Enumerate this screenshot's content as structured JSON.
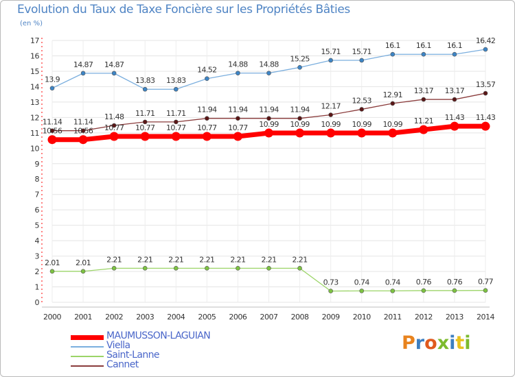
{
  "title": "Evolution du Taux de Taxe Foncière sur les Propriétés Bâties",
  "unit_label": "(en %)",
  "logo_text": "Proxiti",
  "logo_colors": [
    "#e8831e",
    "#3d7fc1",
    "#e05a1e",
    "#7dbb2e",
    "#3d7fc1",
    "#e8c21e",
    "#7dbb2e"
  ],
  "chart_data": {
    "type": "line",
    "title": "Evolution du Taux de Taxe Foncière sur les Propriétés Bâties",
    "ylabel": "(en %)",
    "xlabel": "",
    "x": [
      "2000",
      "2001",
      "2002",
      "2003",
      "2004",
      "2005",
      "2006",
      "2007",
      "2008",
      "2009",
      "2010",
      "2011",
      "2012",
      "2013",
      "2014"
    ],
    "ylim": [
      0,
      17
    ],
    "yticks": [
      "0",
      "1",
      "2",
      "3",
      "4",
      "5",
      "6",
      "7",
      "8",
      "9",
      "10",
      "11",
      "12",
      "13",
      "14",
      "15",
      "16",
      "17"
    ],
    "grid": true,
    "legend_position": "bottom-left",
    "series": [
      {
        "name": "MAUMUSSON-LAGUIAN",
        "color": "#ff0000",
        "values": [
          10.56,
          10.56,
          10.77,
          10.77,
          10.77,
          10.77,
          10.77,
          10.99,
          10.99,
          10.99,
          10.99,
          10.99,
          11.21,
          11.43,
          11.43
        ],
        "labels": [
          "10.56",
          "10.56",
          "10.77",
          "10.77",
          "10.77",
          "10.77",
          "10.77",
          "10.99",
          "10.99",
          "10.99",
          "10.99",
          "10.99",
          "11.21",
          "11.43",
          "11.43"
        ]
      },
      {
        "name": "Viella",
        "color": "#5b9bd5",
        "values": [
          13.9,
          14.87,
          14.87,
          13.83,
          13.83,
          14.52,
          14.88,
          14.88,
          15.25,
          15.71,
          15.71,
          16.1,
          16.1,
          16.1,
          16.42
        ],
        "labels": [
          "13.9",
          "14.87",
          "14.87",
          "13.83",
          "13.83",
          "14.52",
          "14.88",
          "14.88",
          "15.25",
          "15.71",
          "15.71",
          "16.1",
          "16.1",
          "16.1",
          "16.42"
        ]
      },
      {
        "name": "Saint-Lanne",
        "color": "#8fd14f",
        "values": [
          2.01,
          2.01,
          2.21,
          2.21,
          2.21,
          2.21,
          2.21,
          2.21,
          2.21,
          0.73,
          0.74,
          0.74,
          0.76,
          0.76,
          0.77
        ],
        "labels": [
          "2.01",
          "2.01",
          "2.21",
          "2.21",
          "2.21",
          "2.21",
          "2.21",
          "2.21",
          "2.21",
          "0.73",
          "0.74",
          "0.74",
          "0.76",
          "0.76",
          "0.77"
        ]
      },
      {
        "name": "Cannet",
        "color": "#7b2c2c",
        "values": [
          11.14,
          11.14,
          11.48,
          11.71,
          11.71,
          11.94,
          11.94,
          11.94,
          11.94,
          12.17,
          12.53,
          12.91,
          13.17,
          13.17,
          13.57
        ],
        "labels": [
          "11.14",
          "11.14",
          "11.48",
          "11.71",
          "11.71",
          "11.94",
          "11.94",
          "11.94",
          "11.94",
          "12.17",
          "12.53",
          "12.91",
          "13.17",
          "13.17",
          "13.57"
        ]
      }
    ]
  }
}
